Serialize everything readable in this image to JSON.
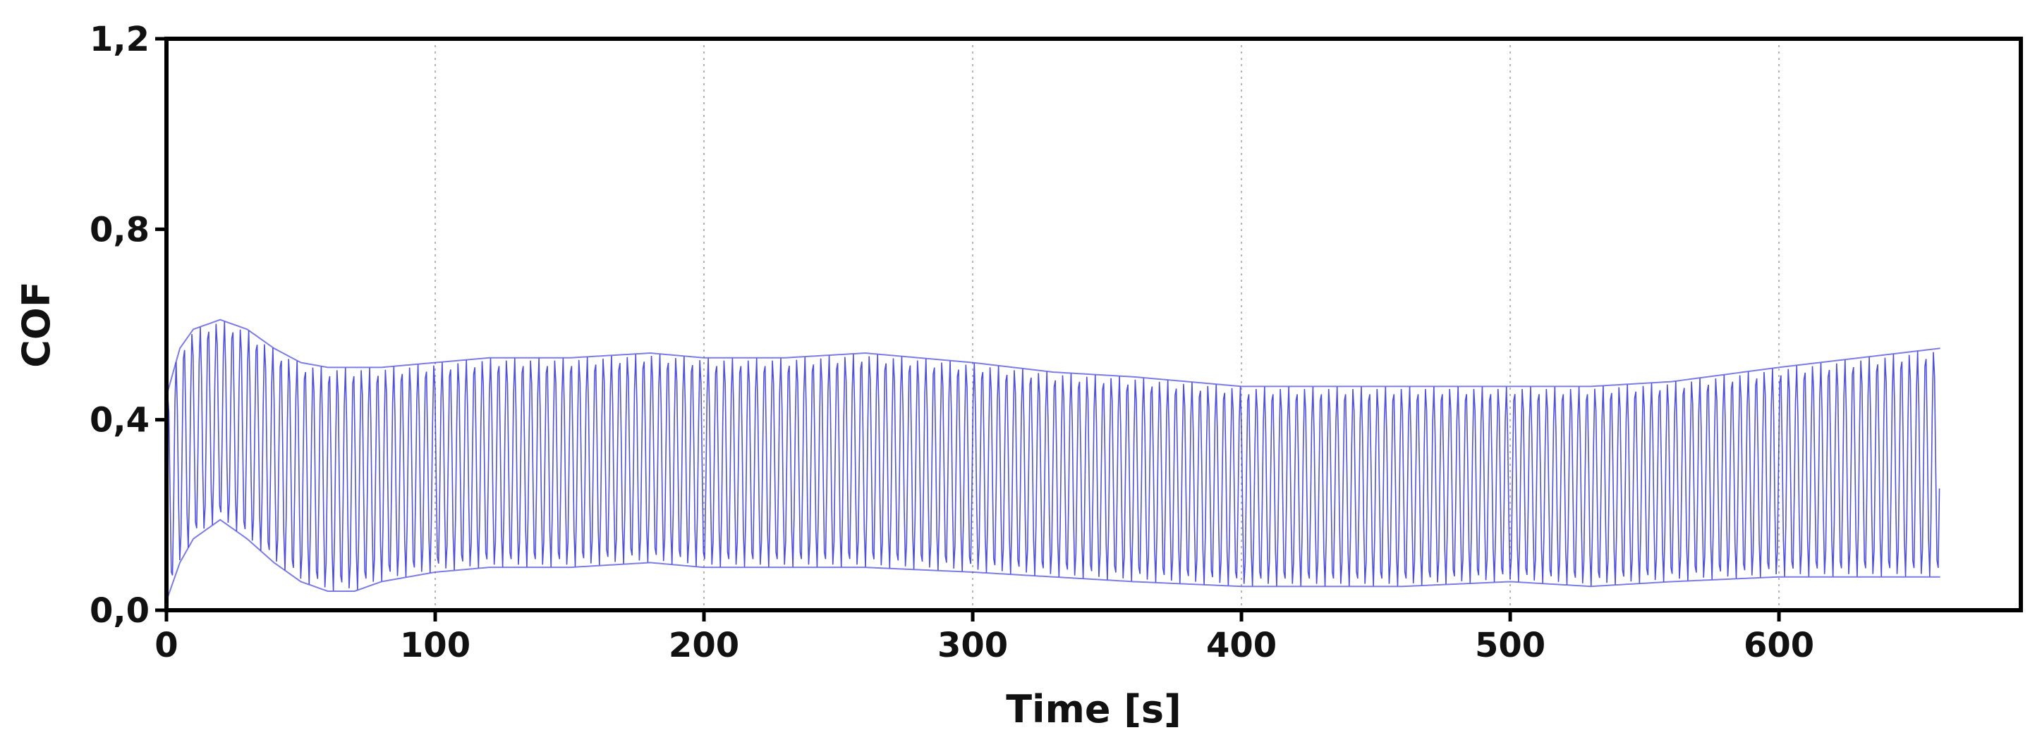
{
  "chart_data": {
    "type": "line",
    "title": "",
    "xlabel": "Time [s]",
    "ylabel": "COF",
    "xlim": [
      0,
      690
    ],
    "ylim": [
      0,
      1.2
    ],
    "x_ticks": [
      0,
      100,
      200,
      300,
      400,
      500,
      600
    ],
    "x_tick_labels": [
      "0",
      "100",
      "200",
      "300",
      "400",
      "500",
      "600"
    ],
    "y_ticks": [
      0,
      0.4,
      0.8,
      1.2
    ],
    "y_tick_labels": [
      "0,0",
      "0,4",
      "0,8",
      "1,2"
    ],
    "grid": {
      "x": true,
      "y": false,
      "style": "dotted"
    },
    "series": [
      {
        "color": "#2424d8",
        "style": "oscillating signal (upper and lower envelope)",
        "x": [
          0,
          5,
          10,
          20,
          30,
          40,
          50,
          60,
          70,
          80,
          100,
          120,
          150,
          180,
          200,
          230,
          260,
          300,
          330,
          360,
          400,
          430,
          460,
          500,
          530,
          560,
          600,
          630,
          660
        ],
        "upper": [
          0.45,
          0.55,
          0.59,
          0.61,
          0.59,
          0.55,
          0.52,
          0.51,
          0.51,
          0.51,
          0.52,
          0.53,
          0.53,
          0.54,
          0.53,
          0.53,
          0.54,
          0.52,
          0.5,
          0.49,
          0.47,
          0.47,
          0.47,
          0.47,
          0.47,
          0.48,
          0.51,
          0.53,
          0.55
        ],
        "lower": [
          0.02,
          0.1,
          0.15,
          0.19,
          0.15,
          0.1,
          0.06,
          0.04,
          0.04,
          0.06,
          0.08,
          0.09,
          0.09,
          0.1,
          0.09,
          0.09,
          0.09,
          0.08,
          0.07,
          0.06,
          0.05,
          0.05,
          0.05,
          0.06,
          0.05,
          0.06,
          0.07,
          0.07,
          0.07
        ]
      }
    ]
  }
}
